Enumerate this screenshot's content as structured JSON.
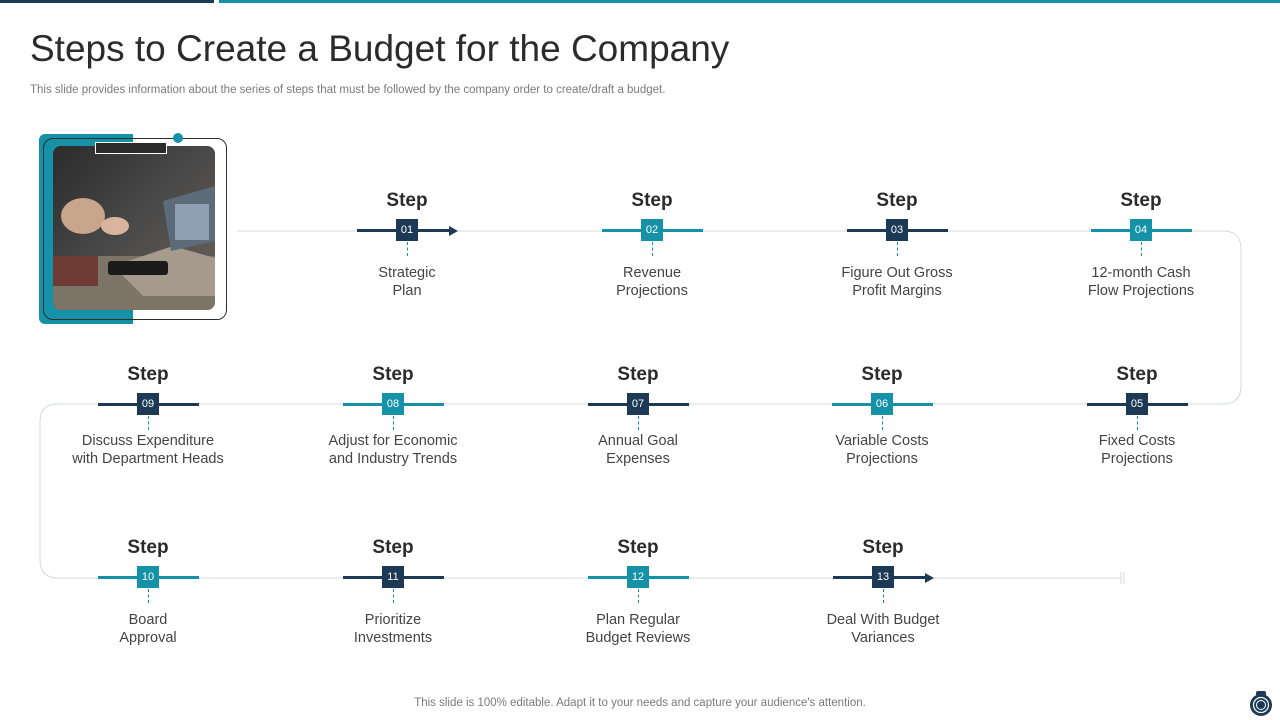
{
  "title": "Steps to Create a Budget for the Company",
  "subtitle": "This slide provides information about the series of steps that must be followed by the company order to create/draft a budget.",
  "footer": "This slide is 100% editable. Adapt it to your needs and capture your audience's attention.",
  "colors": {
    "dark": "#1c3a56",
    "teal": "#1592a8",
    "line": "#d4d9dd"
  },
  "steps": [
    {
      "label": "Step",
      "num": "01",
      "text": [
        "Strategic",
        "Plan"
      ],
      "color": "dark"
    },
    {
      "label": "Step",
      "num": "02",
      "text": [
        "Revenue",
        "Projections"
      ],
      "color": "teal"
    },
    {
      "label": "Step",
      "num": "03",
      "text": [
        "Figure Out Gross",
        "Profit Margins"
      ],
      "color": "dark"
    },
    {
      "label": "Step",
      "num": "04",
      "text": [
        "12-month Cash",
        "Flow Projections"
      ],
      "color": "teal"
    },
    {
      "label": "Step",
      "num": "05",
      "text": [
        "Fixed Costs",
        "Projections"
      ],
      "color": "dark"
    },
    {
      "label": "Step",
      "num": "06",
      "text": [
        "Variable Costs",
        "Projections"
      ],
      "color": "teal"
    },
    {
      "label": "Step",
      "num": "07",
      "text": [
        "Annual Goal",
        "Expenses"
      ],
      "color": "dark"
    },
    {
      "label": "Step",
      "num": "08",
      "text": [
        "Adjust for Economic",
        "and Industry Trends"
      ],
      "color": "teal"
    },
    {
      "label": "Step",
      "num": "09",
      "text": [
        "Discuss Expenditure",
        "with Department Heads"
      ],
      "color": "dark"
    },
    {
      "label": "Step",
      "num": "10",
      "text": [
        "Board",
        "Approval"
      ],
      "color": "teal"
    },
    {
      "label": "Step",
      "num": "11",
      "text": [
        "Prioritize",
        "Investments"
      ],
      "color": "dark"
    },
    {
      "label": "Step",
      "num": "12",
      "text": [
        "Plan Regular",
        "Budget Reviews"
      ],
      "color": "teal"
    },
    {
      "label": "Step",
      "num": "13",
      "text": [
        "Deal With Budget",
        "Variances"
      ],
      "color": "dark"
    }
  ]
}
